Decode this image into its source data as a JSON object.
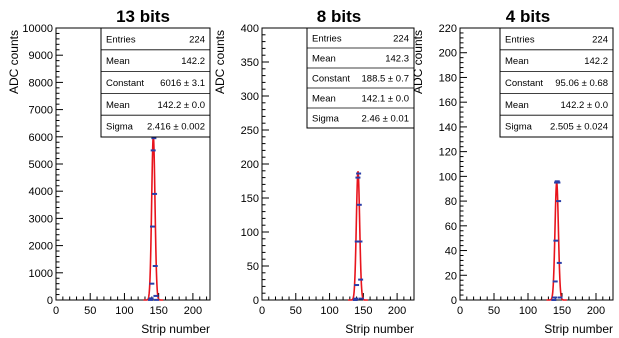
{
  "chart_data": [
    {
      "type": "scatter",
      "title": "13 bits",
      "xlabel": "Strip number",
      "ylabel": "ADC counts",
      "xlim": [
        0,
        225
      ],
      "ylim": [
        0,
        10000
      ],
      "xticks": [
        0,
        50,
        100,
        150,
        200
      ],
      "yticks": [
        0,
        1000,
        2000,
        3000,
        4000,
        5000,
        6000,
        7000,
        8000,
        9000,
        10000
      ],
      "series": [
        {
          "x": [
            138,
            139,
            140,
            141,
            142,
            143,
            144,
            145,
            146,
            147
          ],
          "y": [
            3,
            60,
            600,
            2700,
            5500,
            5950,
            3900,
            1250,
            150,
            5
          ]
        }
      ],
      "fit": {
        "function": "gaus",
        "constant": 6016,
        "mean": 142.2,
        "sigma": 2.416
      },
      "stats": {
        "rows": [
          {
            "label": "Entries",
            "value": "224"
          },
          {
            "label": "Mean",
            "value": "142.2"
          },
          {
            "label": "Constant",
            "value": "6016 ± 3.1"
          },
          {
            "label": "Mean",
            "value": "142.2 ± 0.0"
          },
          {
            "label": "Sigma",
            "value": "2.416 ± 0.002"
          }
        ]
      }
    },
    {
      "type": "scatter",
      "title": "8 bits",
      "xlabel": "Strip number",
      "ylabel": "ADC counts",
      "xlim": [
        0,
        225
      ],
      "ylim": [
        0,
        400
      ],
      "xticks": [
        0,
        50,
        100,
        150,
        200
      ],
      "yticks": [
        0,
        50,
        100,
        150,
        200,
        250,
        300,
        350,
        400
      ],
      "series": [
        {
          "x": [
            138,
            139,
            140,
            141,
            142,
            143,
            144,
            145,
            146,
            147
          ],
          "y": [
            0,
            2,
            22,
            86,
            180,
            186,
            140,
            86,
            30,
            2
          ]
        }
      ],
      "fit": {
        "function": "gaus",
        "constant": 188.5,
        "mean": 142.1,
        "sigma": 2.46
      },
      "stats": {
        "rows": [
          {
            "label": "Entries",
            "value": "224"
          },
          {
            "label": "Mean",
            "value": "142.3"
          },
          {
            "label": "Constant",
            "value": "188.5 ± 0.7"
          },
          {
            "label": "Mean",
            "value": "142.1 ± 0.0"
          },
          {
            "label": "Sigma",
            "value": "2.46 ± 0.01"
          }
        ]
      }
    },
    {
      "type": "scatter",
      "title": "4 bits",
      "xlabel": "Strip number",
      "ylabel": "ADC counts",
      "xlim": [
        0,
        225
      ],
      "ylim": [
        0,
        220
      ],
      "xticks": [
        0,
        50,
        100,
        150,
        200
      ],
      "yticks": [
        0,
        20,
        40,
        60,
        80,
        100,
        120,
        140,
        160,
        180,
        200,
        220
      ],
      "series": [
        {
          "x": [
            138,
            139,
            140,
            141,
            142,
            143,
            144,
            145,
            146,
            147
          ],
          "y": [
            0,
            2,
            15,
            48,
            95,
            96,
            95,
            80,
            30,
            2
          ]
        }
      ],
      "fit": {
        "function": "gaus",
        "constant": 95.06,
        "mean": 142.2,
        "sigma": 2.505
      },
      "stats": {
        "rows": [
          {
            "label": "Entries",
            "value": "224"
          },
          {
            "label": "Mean",
            "value": "142.2"
          },
          {
            "label": "Constant",
            "value": "95.06 ± 0.68"
          },
          {
            "label": "Mean",
            "value": "142.2 ± 0.0"
          },
          {
            "label": "Sigma",
            "value": "2.505 ± 0.024"
          }
        ]
      }
    }
  ],
  "colors": {
    "fit": "#e8141c",
    "marker": "#2a3ea8",
    "axis": "#000000"
  }
}
